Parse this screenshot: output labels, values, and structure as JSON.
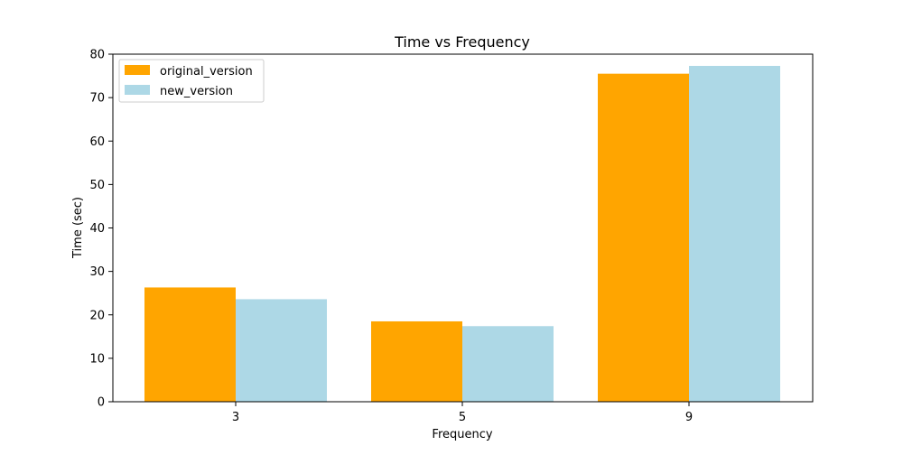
{
  "chart_data": {
    "type": "bar",
    "title": "Time vs Frequency",
    "xlabel": "Frequency",
    "ylabel": "Time (sec)",
    "categories": [
      "3",
      "5",
      "9"
    ],
    "series": [
      {
        "name": "original_version",
        "values": [
          26.3,
          18.5,
          75.5
        ],
        "color": "#FFA500"
      },
      {
        "name": "new_version",
        "values": [
          23.6,
          17.4,
          77.3
        ],
        "color": "#ADD8E6"
      }
    ],
    "ylim": [
      0,
      80
    ],
    "yticks": [
      0,
      10,
      20,
      30,
      40,
      50,
      60,
      70,
      80
    ],
    "grid": false,
    "legend_position": "top-left"
  }
}
